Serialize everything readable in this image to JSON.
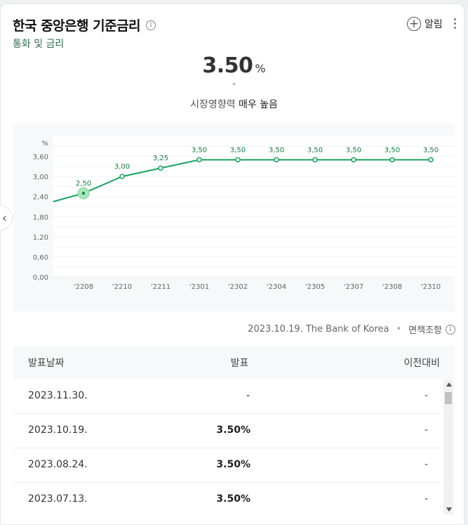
{
  "header": {
    "title": "한국 중앙은행 기준금리",
    "subtitle": "통화 및 금리",
    "alarm_label": "알림",
    "info_icon": "info-icon",
    "more_icon": "more-vertical-icon"
  },
  "summary": {
    "value": "3.50",
    "unit": "%",
    "change": "-",
    "influence_label": "시장영향력",
    "influence_level": "매우 높음"
  },
  "chart_data": {
    "type": "line",
    "unit_label": "%",
    "x": [
      "'2208",
      "'2210",
      "'2211",
      "'2301",
      "'2302",
      "'2304",
      "'2305",
      "'2307",
      "'2308",
      "'2310"
    ],
    "values": [
      2.5,
      3.0,
      3.25,
      3.5,
      3.5,
      3.5,
      3.5,
      3.5,
      3.5,
      3.5
    ],
    "data_labels": [
      "2,50",
      "3,00",
      "3,25",
      "3,50",
      "3,50",
      "3,50",
      "3,50",
      "3,50",
      "3,50",
      "3,50"
    ],
    "leading_value": 2.25,
    "highlight_index": 0,
    "y_ticks": [
      0.0,
      0.6,
      1.2,
      1.8,
      2.4,
      3.0,
      3.6
    ],
    "y_tick_labels": [
      "0,00",
      "0,60",
      "1,20",
      "1,80",
      "2,40",
      "3,00",
      "3,60"
    ],
    "ylim": [
      0,
      4.2
    ],
    "grid": true,
    "color": "#1aa260"
  },
  "source": {
    "text": "2023.10.19. The Bank of Korea",
    "disclaimer": "면책조항"
  },
  "table": {
    "headers": {
      "date": "발표날짜",
      "announced": "발표",
      "previous": "이전대비"
    },
    "rows": [
      {
        "date": "2023.11.30.",
        "announced": "-",
        "previous": "-"
      },
      {
        "date": "2023.10.19.",
        "announced": "3.50%",
        "previous": "-"
      },
      {
        "date": "2023.08.24.",
        "announced": "3.50%",
        "previous": "-"
      },
      {
        "date": "2023.07.13.",
        "announced": "3.50%",
        "previous": "-"
      }
    ]
  }
}
